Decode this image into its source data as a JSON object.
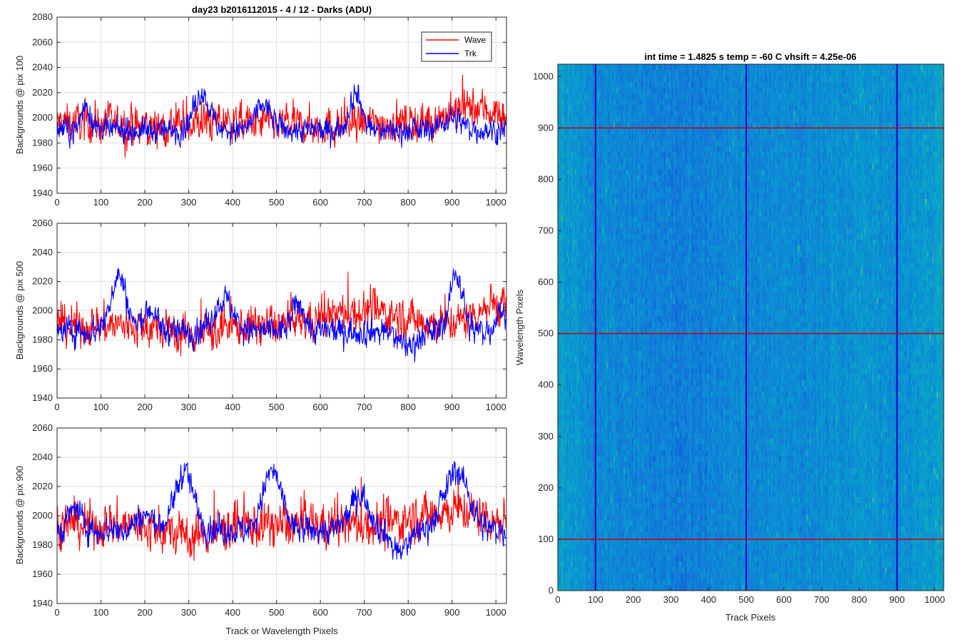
{
  "chart_data": [
    {
      "type": "line",
      "title": "day23 b2016112015 - 4 / 12 - Darks (ADU)",
      "xlabel": "",
      "ylabel": "Backgrounds @ pix 100",
      "xlim": [
        0,
        1024
      ],
      "ylim": [
        1940,
        2080
      ],
      "xticks": [
        0,
        100,
        200,
        300,
        400,
        500,
        600,
        700,
        800,
        900,
        1000
      ],
      "yticks": [
        1940,
        1960,
        1980,
        2000,
        2020,
        2040,
        2060,
        2080
      ],
      "grid": true,
      "legend": "top-right",
      "series": [
        {
          "name": "Wave",
          "color": "#ff0000",
          "base": 1996,
          "noise": 11,
          "spike": 30,
          "bumps": [
            [
              200,
              60,
              -4
            ],
            [
              600,
              80,
              -3
            ],
            [
              950,
              80,
              12
            ]
          ]
        },
        {
          "name": "Trk",
          "color": "#0000ff",
          "base": 1990,
          "noise": 7,
          "spike": 8,
          "bumps": [
            [
              65,
              15,
              20
            ],
            [
              330,
              25,
              30
            ],
            [
              470,
              25,
              20
            ],
            [
              680,
              20,
              30
            ],
            [
              900,
              30,
              10
            ]
          ]
        }
      ]
    },
    {
      "type": "line",
      "title": "",
      "xlabel": "",
      "ylabel": "Backgrounds @ pix 500",
      "xlim": [
        0,
        1024
      ],
      "ylim": [
        1940,
        2060
      ],
      "xticks": [
        0,
        100,
        200,
        300,
        400,
        500,
        600,
        700,
        800,
        900,
        1000
      ],
      "yticks": [
        1940,
        1960,
        1980,
        2000,
        2020,
        2040,
        2060
      ],
      "grid": true,
      "legend": "none",
      "series": [
        {
          "name": "Wave",
          "color": "#ff0000",
          "base": 1990,
          "noise": 10,
          "spike": 25,
          "bumps": [
            [
              300,
              80,
              -6
            ],
            [
              700,
              120,
              10
            ],
            [
              1000,
              60,
              15
            ]
          ]
        },
        {
          "name": "Trk",
          "color": "#0000ff",
          "base": 1986,
          "noise": 7,
          "spike": 8,
          "bumps": [
            [
              140,
              25,
              38
            ],
            [
              210,
              20,
              15
            ],
            [
              380,
              30,
              22
            ],
            [
              550,
              20,
              18
            ],
            [
              800,
              30,
              -10
            ],
            [
              910,
              20,
              40
            ],
            [
              1010,
              15,
              15
            ]
          ]
        }
      ]
    },
    {
      "type": "line",
      "title": "",
      "xlabel": "Track or Wavelength Pixels",
      "ylabel": "Backgrounds @ pix 900",
      "xlim": [
        0,
        1024
      ],
      "ylim": [
        1940,
        2060
      ],
      "xticks": [
        0,
        100,
        200,
        300,
        400,
        500,
        600,
        700,
        800,
        900,
        1000
      ],
      "yticks": [
        1940,
        1960,
        1980,
        2000,
        2020,
        2040,
        2060
      ],
      "grid": true,
      "legend": "none",
      "series": [
        {
          "name": "Wave",
          "color": "#ff0000",
          "base": 1994,
          "noise": 11,
          "spike": 30,
          "bumps": [
            [
              300,
              80,
              -8
            ],
            [
              900,
              100,
              10
            ]
          ]
        },
        {
          "name": "Trk",
          "color": "#0000ff",
          "base": 1990,
          "noise": 7,
          "spike": 8,
          "bumps": [
            [
              40,
              20,
              15
            ],
            [
              200,
              30,
              10
            ],
            [
              290,
              30,
              40
            ],
            [
              490,
              30,
              40
            ],
            [
              690,
              30,
              25
            ],
            [
              780,
              25,
              -15
            ],
            [
              910,
              40,
              40
            ]
          ]
        }
      ]
    },
    {
      "type": "heatmap",
      "title": "int time = 1.4825 s   temp = -60 C   vhsift = 4.25e-06",
      "xlabel": "Track Pixels",
      "ylabel": "Wavelength Pixels",
      "xlim": [
        0,
        1024
      ],
      "ylim": [
        0,
        1024
      ],
      "xticks": [
        0,
        100,
        200,
        300,
        400,
        500,
        600,
        700,
        800,
        900,
        1000
      ],
      "yticks": [
        0,
        100,
        200,
        300,
        400,
        500,
        600,
        700,
        800,
        900,
        1000
      ],
      "colormap": "parula",
      "vertical_lines": [
        100,
        500,
        900
      ],
      "vertical_line_color": "#0000cc",
      "horizontal_lines": [
        100,
        500,
        900
      ],
      "horizontal_line_color": "#cc0000",
      "grid": false
    }
  ],
  "legend": {
    "items": [
      {
        "label": "Wave",
        "color": "#ff0000"
      },
      {
        "label": "Trk",
        "color": "#0000ff"
      }
    ]
  }
}
